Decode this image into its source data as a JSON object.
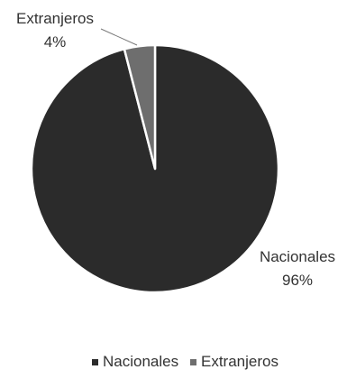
{
  "chart_data": {
    "type": "pie",
    "series": [
      {
        "name": "Nacionales",
        "value": 96,
        "label_name": "Nacionales",
        "label_pct": "96%",
        "color": "#2b2b2b"
      },
      {
        "name": "Extranjeros",
        "value": 4,
        "label_name": "Extranjeros",
        "label_pct": "4%",
        "color": "#6e6e6e"
      }
    ],
    "legend": {
      "position": "bottom",
      "items": [
        "Nacionales",
        "Extranjeros"
      ]
    },
    "slice_border_color": "#ffffff"
  }
}
